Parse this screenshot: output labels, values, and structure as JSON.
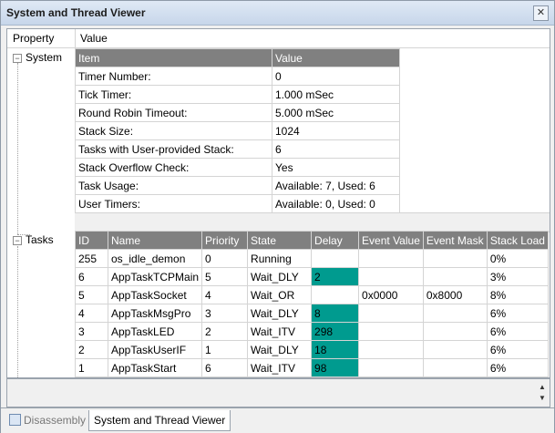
{
  "window": {
    "title": "System and Thread Viewer",
    "close_glyph": "✕"
  },
  "header": {
    "property": "Property",
    "value": "Value"
  },
  "tree": {
    "system_label": "System",
    "tasks_label": "Tasks",
    "expander": "−"
  },
  "system_table": {
    "columns": [
      "Item",
      "Value"
    ],
    "rows": [
      [
        "Timer Number:",
        "0"
      ],
      [
        "Tick Timer:",
        "1.000 mSec"
      ],
      [
        "Round Robin Timeout:",
        "5.000 mSec"
      ],
      [
        "Stack Size:",
        "1024"
      ],
      [
        "Tasks with User-provided Stack:",
        "6"
      ],
      [
        "Stack Overflow Check:",
        "Yes"
      ],
      [
        "Task Usage:",
        "Available: 7, Used: 6"
      ],
      [
        "User Timers:",
        "Available: 0, Used: 0"
      ]
    ]
  },
  "tasks_table": {
    "columns": [
      "ID",
      "Name",
      "Priority",
      "State",
      "Delay",
      "Event Value",
      "Event Mask",
      "Stack Load"
    ],
    "rows": [
      {
        "id": "255",
        "name": "os_idle_demon",
        "priority": "0",
        "state": "Running",
        "delay": "",
        "event_value": "",
        "event_mask": "",
        "stack_load": "0%",
        "delay_highlight": false
      },
      {
        "id": "6",
        "name": "AppTaskTCPMain",
        "priority": "5",
        "state": "Wait_DLY",
        "delay": "2",
        "event_value": "",
        "event_mask": "",
        "stack_load": "3%",
        "delay_highlight": true
      },
      {
        "id": "5",
        "name": "AppTaskSocket",
        "priority": "4",
        "state": "Wait_OR",
        "delay": "",
        "event_value": "0x0000",
        "event_mask": "0x8000",
        "stack_load": "8%",
        "delay_highlight": false
      },
      {
        "id": "4",
        "name": "AppTaskMsgPro",
        "priority": "3",
        "state": "Wait_DLY",
        "delay": "8",
        "event_value": "",
        "event_mask": "",
        "stack_load": "6%",
        "delay_highlight": true
      },
      {
        "id": "3",
        "name": "AppTaskLED",
        "priority": "2",
        "state": "Wait_ITV",
        "delay": "298",
        "event_value": "",
        "event_mask": "",
        "stack_load": "6%",
        "delay_highlight": true
      },
      {
        "id": "2",
        "name": "AppTaskUserIF",
        "priority": "1",
        "state": "Wait_DLY",
        "delay": "18",
        "event_value": "",
        "event_mask": "",
        "stack_load": "6%",
        "delay_highlight": true
      },
      {
        "id": "1",
        "name": "AppTaskStart",
        "priority": "6",
        "state": "Wait_ITV",
        "delay": "98",
        "event_value": "",
        "event_mask": "",
        "stack_load": "6%",
        "delay_highlight": true
      }
    ]
  },
  "colors": {
    "delay_highlight": "#009b8f",
    "table_header": "#808080"
  },
  "status": {
    "scroll_up": "▲",
    "scroll_down": "▼"
  },
  "tabs": [
    {
      "label": "Disassembly",
      "active": false,
      "icon": "disassembly-icon"
    },
    {
      "label": "System and Thread Viewer",
      "active": true,
      "icon": "thread-viewer-icon"
    }
  ]
}
